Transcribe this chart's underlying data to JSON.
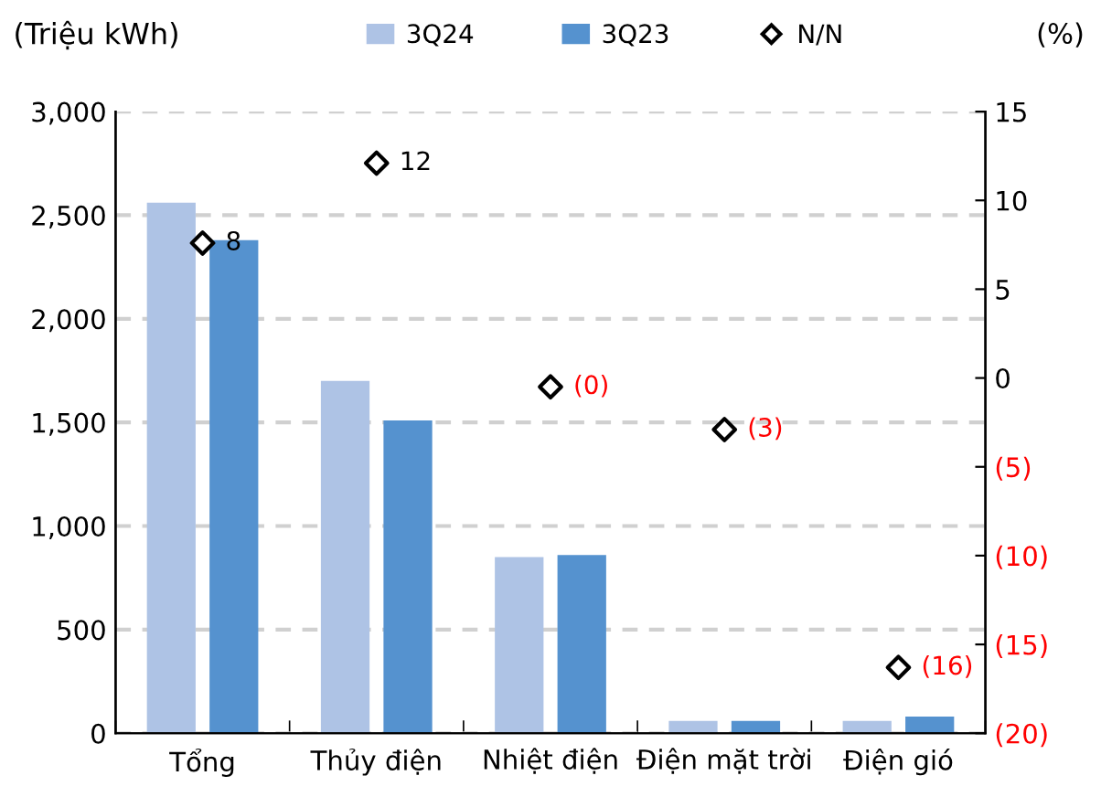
{
  "chart_data": {
    "type": "bar",
    "categories": [
      "Tổng",
      "Thủy điện",
      "Nhiệt điện",
      "Điện mặt trời",
      "Điện gió"
    ],
    "series": [
      {
        "name": "3Q24",
        "color": "#aec3e5",
        "values": [
          2560,
          1700,
          850,
          60,
          60
        ]
      },
      {
        "name": "3Q23",
        "color": "#5592cf",
        "values": [
          2380,
          1510,
          860,
          60,
          80
        ]
      },
      {
        "name": "N/N",
        "type": "scatter",
        "axis": "y2",
        "color": "#000000",
        "marker": "diamond",
        "values": [
          7.6,
          12.1,
          -0.5,
          -2.9,
          -16.3
        ],
        "value_labels": [
          "8",
          "12",
          "(0)",
          "(3)",
          "(16)"
        ]
      }
    ],
    "ylabel": "(Triệu kWh)",
    "y2label": "(%)",
    "ylim": [
      0,
      3000
    ],
    "yticks": [
      0,
      500,
      {
        "value": 1000,
        "label": "1,000"
      },
      {
        "value": 1500,
        "label": "1,500"
      },
      {
        "value": 2000,
        "label": "2,000"
      },
      {
        "value": 2500,
        "label": "2,500"
      },
      {
        "value": 3000,
        "label": "3,000"
      }
    ],
    "y2lim": [
      -20,
      15
    ],
    "y2ticks": [
      {
        "value": -20,
        "label": "(20)"
      },
      {
        "value": -15,
        "label": "(15)"
      },
      {
        "value": -10,
        "label": "(10)"
      },
      {
        "value": -5,
        "label": "(5)"
      },
      0,
      5,
      10,
      15
    ],
    "grid": "y",
    "legend": "top"
  }
}
